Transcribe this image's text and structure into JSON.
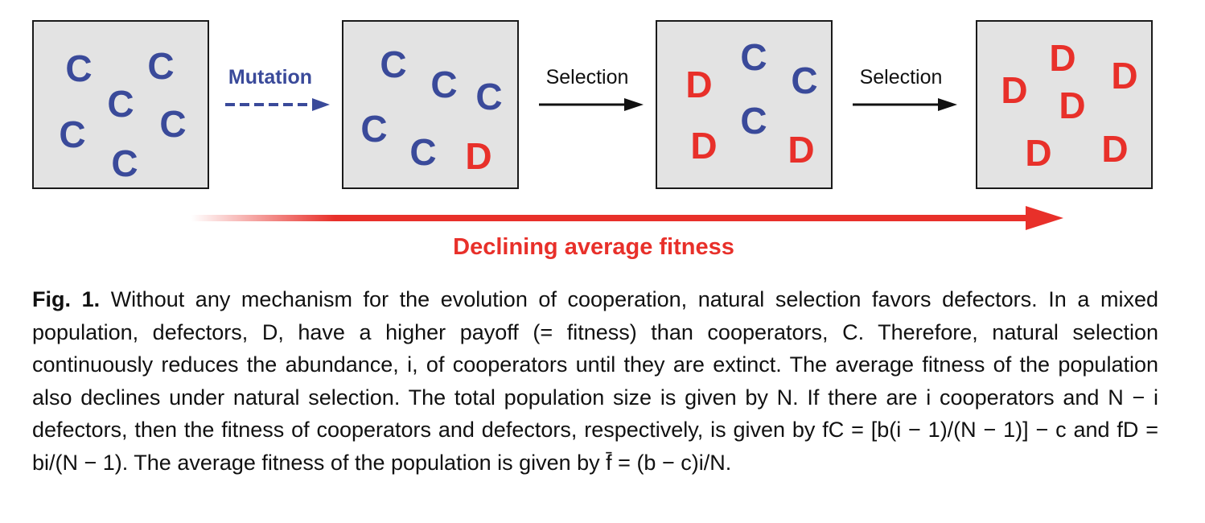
{
  "figure": {
    "panels": [
      {
        "letters": [
          "C",
          "C",
          "C",
          "C",
          "C",
          "C"
        ]
      },
      {
        "letters": [
          "C",
          "C",
          "C",
          "C",
          "C",
          "D"
        ]
      },
      {
        "letters": [
          "C",
          "C",
          "C",
          "D",
          "D",
          "D"
        ]
      },
      {
        "letters": [
          "D",
          "D",
          "D",
          "D",
          "D",
          "D"
        ]
      }
    ],
    "steps": [
      {
        "label": "Mutation",
        "style": "dashed"
      },
      {
        "label": "Selection",
        "style": "solid"
      },
      {
        "label": "Selection",
        "style": "solid"
      }
    ],
    "trend_label": "Declining average fitness",
    "colors": {
      "cooperator": "#3a4a9a",
      "defector": "#e8302a",
      "panel_bg": "#e3e3e3",
      "trend": "#e8302a"
    }
  },
  "caption": {
    "label": "Fig. 1.",
    "text": "Without any mechanism for the evolution of cooperation, natural selection favors defectors. In a mixed population, defectors, D, have a higher payoff (= fitness) than cooperators, C. Therefore, natural selection continuously reduces the abundance, i, of cooperators until they are extinct. The average fitness of the population also declines under natural selection. The total population size is given by N. If there are i cooperators and N − i defectors, then the fitness of cooperators and defectors, respectively, is given by fC = [b(i − 1)/(N − 1)] − c and fD = bi/(N − 1). The average fitness of the population is given by f̄ = (b − c)i/N."
  }
}
